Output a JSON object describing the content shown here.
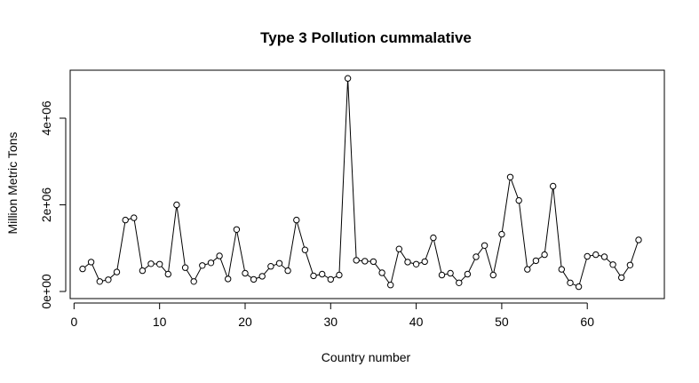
{
  "chart_data": {
    "type": "line",
    "title": "Type 3 Pollution cummalative",
    "xlabel": "Country number",
    "ylabel": "Million Metric Tons",
    "xlim": [
      1,
      66
    ],
    "ylim": [
      0,
      5000000
    ],
    "x_ticks": [
      0,
      10,
      20,
      30,
      40,
      50,
      60
    ],
    "x_tick_labels": [
      "0",
      "10",
      "20",
      "30",
      "40",
      "50",
      "60"
    ],
    "y_ticks": [
      0,
      2000000,
      4000000
    ],
    "y_tick_labels": [
      "0e+00",
      "2e+06",
      "4e+06"
    ],
    "grid": false,
    "markers": "open-circle",
    "series": [
      {
        "x": [
          1,
          2,
          3,
          4,
          5,
          6,
          7,
          8,
          9,
          10,
          11,
          12,
          13,
          14,
          15,
          16,
          17,
          18,
          19,
          20,
          21,
          22,
          23,
          24,
          25,
          26,
          27,
          28,
          29,
          30,
          31,
          32,
          33,
          34,
          35,
          36,
          37,
          38,
          39,
          40,
          41,
          42,
          43,
          44,
          45,
          46,
          47,
          48,
          49,
          50,
          51,
          52,
          53,
          54,
          55,
          56,
          57,
          58,
          59,
          60,
          61,
          62,
          63,
          64,
          65,
          66
        ],
        "values": [
          520000,
          680000,
          230000,
          270000,
          450000,
          1650000,
          1700000,
          480000,
          640000,
          630000,
          400000,
          2000000,
          550000,
          230000,
          600000,
          660000,
          820000,
          290000,
          1430000,
          420000,
          280000,
          350000,
          580000,
          650000,
          480000,
          1650000,
          960000,
          360000,
          400000,
          280000,
          380000,
          4920000,
          720000,
          700000,
          690000,
          430000,
          150000,
          980000,
          680000,
          630000,
          690000,
          1240000,
          380000,
          420000,
          200000,
          400000,
          800000,
          1060000,
          380000,
          1320000,
          2640000,
          2100000,
          510000,
          710000,
          850000,
          2430000,
          510000,
          200000,
          110000,
          810000,
          850000,
          800000,
          620000,
          320000,
          610000,
          1190000
        ],
        "color": "#000000"
      }
    ]
  }
}
